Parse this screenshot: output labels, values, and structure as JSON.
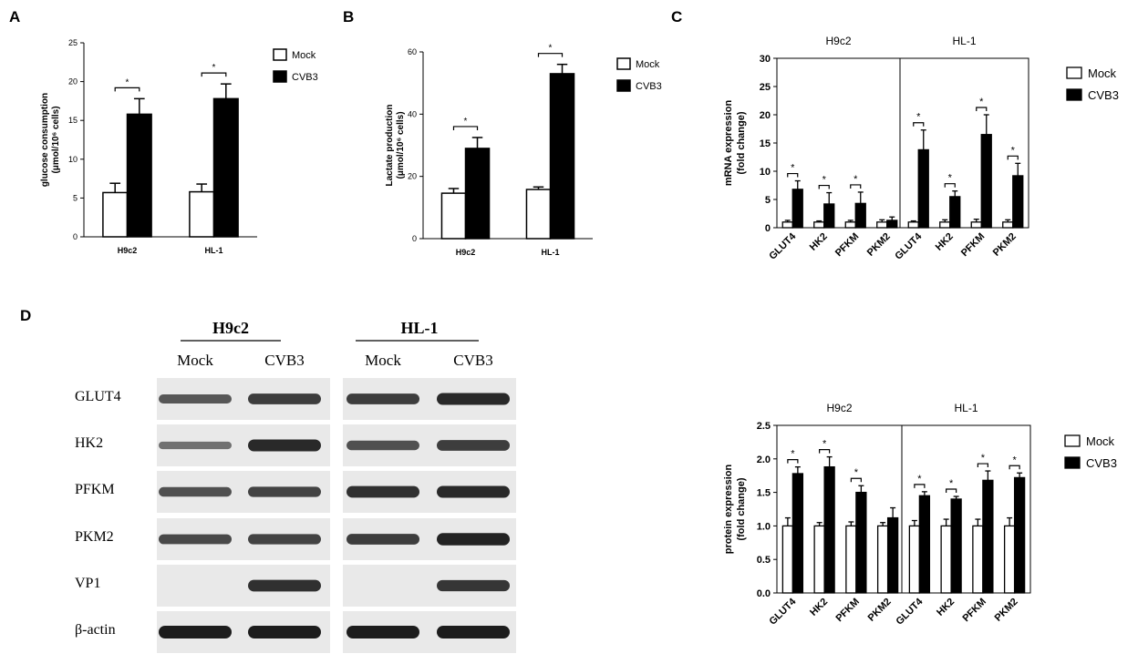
{
  "panels": {
    "A": {
      "letter": "A",
      "chart_data": {
        "type": "bar",
        "categories": [
          "H9c2",
          "HL-1"
        ],
        "series": [
          {
            "name": "Mock",
            "values": [
              5.7,
              5.8
            ],
            "errors": [
              1.2,
              1.0
            ],
            "color": "#ffffff"
          },
          {
            "name": "CVB3",
            "values": [
              15.8,
              17.8
            ],
            "errors": [
              2.0,
              1.9
            ],
            "color": "#000000"
          }
        ],
        "ylabel": "glucose consumption (μmol/10⁶ cells)",
        "ylim": [
          0,
          25
        ],
        "yticks": [
          0,
          5,
          10,
          15,
          20,
          25
        ],
        "significance": [
          "*",
          "*"
        ],
        "legend": "top-right"
      }
    },
    "B": {
      "letter": "B",
      "chart_data": {
        "type": "bar",
        "categories": [
          "H9c2",
          "HL-1"
        ],
        "series": [
          {
            "name": "Mock",
            "values": [
              14.6,
              15.8
            ],
            "errors": [
              1.5,
              0.8
            ],
            "color": "#ffffff"
          },
          {
            "name": "CVB3",
            "values": [
              29.0,
              53.0
            ],
            "errors": [
              3.5,
              3.0
            ],
            "color": "#000000"
          }
        ],
        "ylabel": "Lactate production (μmol/10⁶ cells)",
        "ylim": [
          0,
          60
        ],
        "yticks": [
          0,
          20,
          40,
          60
        ],
        "significance": [
          "*",
          "*"
        ],
        "legend": "top-right"
      }
    },
    "C": {
      "letter": "C",
      "chart_data": {
        "type": "bar",
        "groups": [
          "H9c2",
          "HL-1"
        ],
        "categories": [
          "GLUT4",
          "HK2",
          "PFKM",
          "PKM2",
          "GLUT4",
          "HK2",
          "PFKM",
          "PKM2"
        ],
        "series": [
          {
            "name": "Mock",
            "values": [
              1.0,
              1.0,
              1.0,
              1.0,
              1.0,
              1.0,
              1.0,
              1.0
            ],
            "errors": [
              0.3,
              0.2,
              0.3,
              0.4,
              0.2,
              0.4,
              0.5,
              0.4
            ],
            "color": "#ffffff"
          },
          {
            "name": "CVB3",
            "values": [
              6.8,
              4.2,
              4.3,
              1.3,
              13.8,
              5.5,
              16.5,
              9.2
            ],
            "errors": [
              1.5,
              2.0,
              2.0,
              0.6,
              3.5,
              1.0,
              3.5,
              2.2
            ],
            "color": "#000000"
          }
        ],
        "ylabel": "mRNA expression (fold change)",
        "ylim": [
          0,
          30
        ],
        "yticks": [
          0,
          5,
          10,
          15,
          20,
          25,
          30
        ],
        "significance": [
          "*",
          "*",
          "*",
          "",
          "*",
          "*",
          "*",
          "*"
        ],
        "legend": "top-right"
      }
    },
    "D": {
      "letter": "D",
      "blot": {
        "cell_lines": [
          "H9c2",
          "HL-1"
        ],
        "conditions": [
          "Mock",
          "CVB3",
          "Mock",
          "CVB3"
        ],
        "proteins": [
          "GLUT4",
          "HK2",
          "PFKM",
          "PKM2",
          "VP1",
          "β-actin"
        ],
        "band_intensity": [
          [
            0.55,
            0.75,
            0.75,
            0.9
          ],
          [
            0.35,
            0.9,
            0.6,
            0.75
          ],
          [
            0.6,
            0.7,
            0.85,
            0.9
          ],
          [
            0.65,
            0.7,
            0.75,
            0.95
          ],
          [
            0.0,
            0.85,
            0.0,
            0.8
          ],
          [
            1.0,
            1.0,
            1.0,
            1.0
          ]
        ]
      },
      "chart_data": {
        "type": "bar",
        "groups": [
          "H9c2",
          "HL-1"
        ],
        "categories": [
          "GLUT4",
          "HK2",
          "PFKM",
          "PKM2",
          "GLUT4",
          "HK2",
          "PFKM",
          "PKM2"
        ],
        "series": [
          {
            "name": "Mock",
            "values": [
              1.0,
              1.0,
              1.0,
              1.0,
              1.0,
              1.0,
              1.0,
              1.0
            ],
            "errors": [
              0.12,
              0.05,
              0.06,
              0.05,
              0.08,
              0.1,
              0.1,
              0.12
            ],
            "color": "#ffffff"
          },
          {
            "name": "CVB3",
            "values": [
              1.78,
              1.88,
              1.5,
              1.12,
              1.45,
              1.4,
              1.68,
              1.72
            ],
            "errors": [
              0.1,
              0.15,
              0.1,
              0.15,
              0.06,
              0.04,
              0.14,
              0.07
            ],
            "color": "#000000"
          }
        ],
        "ylabel": "protein expression (fold change)",
        "ylim": [
          0,
          2.5
        ],
        "yticks": [
          "0.0",
          "0.5",
          "1.0",
          "1.5",
          "2.0",
          "2.5"
        ],
        "significance": [
          "*",
          "*",
          "*",
          "",
          "*",
          "*",
          "*",
          "*"
        ],
        "legend": "top-right"
      }
    }
  }
}
